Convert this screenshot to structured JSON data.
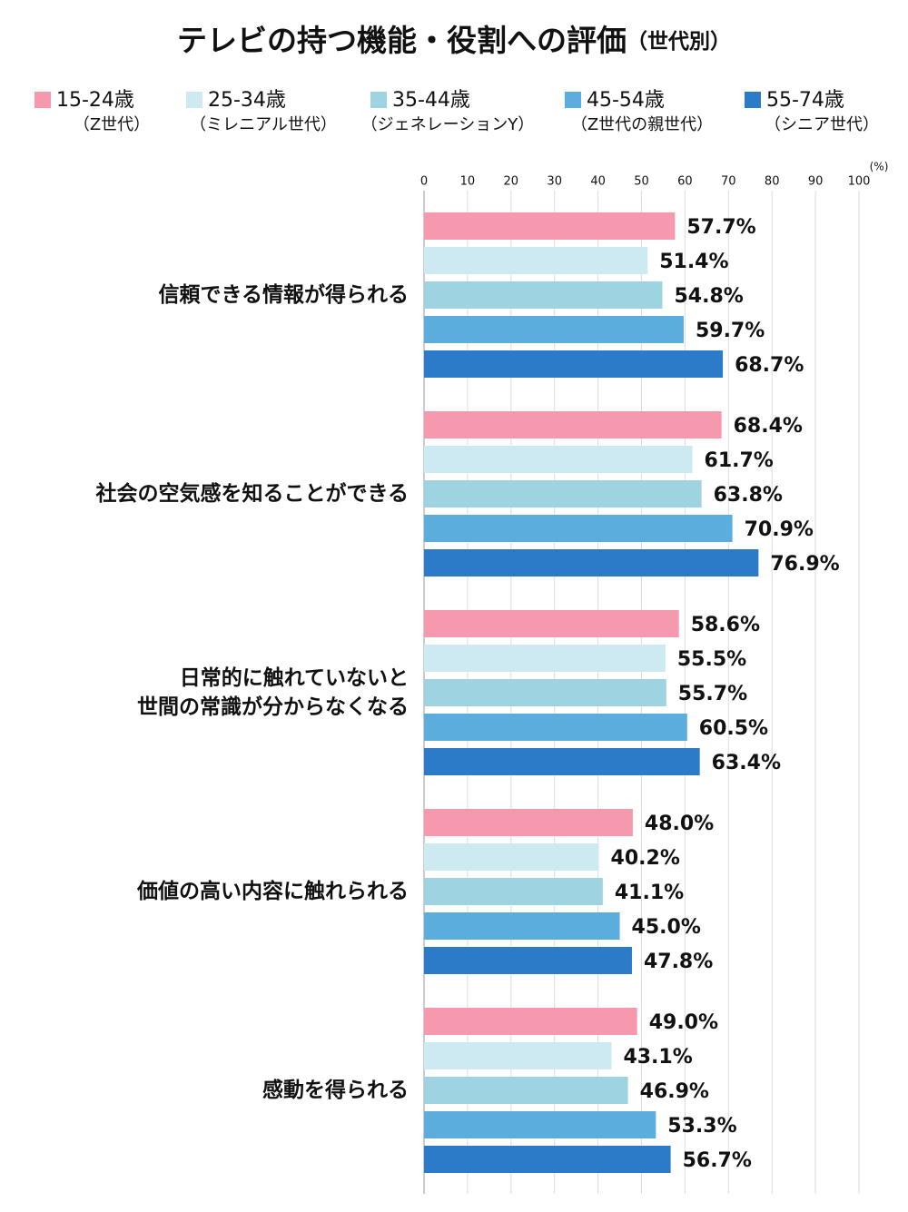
{
  "chart_data": {
    "type": "hbar",
    "title": "テレビの持つ機能・役割への評価",
    "subtitle": "（世代別）",
    "x_unit": "(%)",
    "categories": [
      "信頼できる情報が得られる",
      "社会の空気感を知ることができる",
      "日常的に触れていないと\n世間の常識が分からなくなる",
      "価値の高い内容に触れられる",
      "感動を得られる"
    ],
    "series": [
      {
        "name": "15-24歳",
        "note": "（Z世代）",
        "color": "#f799ae",
        "values": [
          57.7,
          68.4,
          58.6,
          48.0,
          49.0
        ],
        "value_labels": [
          "57.7%",
          "68.4%",
          "58.6%",
          "48.0%",
          "49.0%"
        ]
      },
      {
        "name": "25-34歳",
        "note": "（ミレニアル世代）",
        "color": "#cde9f2",
        "values": [
          51.4,
          61.7,
          55.5,
          40.2,
          43.1
        ],
        "value_labels": [
          "51.4%",
          "61.7%",
          "55.5%",
          "40.2%",
          "43.1%"
        ]
      },
      {
        "name": "35-44歳",
        "note": "（ジェネレーションY）",
        "color": "#9ed4e1",
        "values": [
          54.8,
          63.8,
          55.7,
          41.1,
          46.9
        ],
        "value_labels": [
          "54.8%",
          "63.8%",
          "55.7%",
          "41.1%",
          "46.9%"
        ]
      },
      {
        "name": "45-54歳",
        "note": "（Z世代の親世代）",
        "color": "#5badde",
        "values": [
          59.7,
          70.9,
          60.5,
          45.0,
          53.3
        ],
        "value_labels": [
          "59.7%",
          "70.9%",
          "60.5%",
          "45.0%",
          "53.3%"
        ]
      },
      {
        "name": "55-74歳",
        "note": "（シニア世代）",
        "color": "#2c7bc8",
        "values": [
          68.7,
          76.9,
          63.4,
          47.8,
          56.7
        ],
        "value_labels": [
          "68.7%",
          "76.9%",
          "63.4%",
          "47.8%",
          "56.7%"
        ]
      }
    ],
    "xlim": [
      0,
      100
    ],
    "xticks": [
      0,
      10,
      20,
      30,
      40,
      50,
      60,
      70,
      80,
      90,
      100
    ],
    "grid": true
  }
}
